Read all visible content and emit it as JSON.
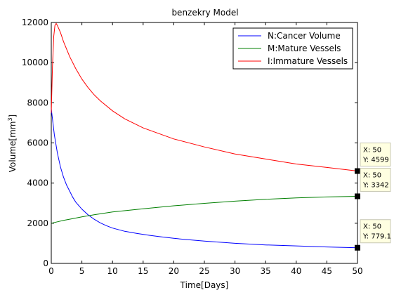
{
  "chart_data": {
    "type": "line",
    "title": "benzekry Model",
    "xlabel": "Time[Days]",
    "ylabel_prefix": "Volume[mm",
    "ylabel_sup": "3",
    "ylabel_suffix": "]",
    "xlim": [
      0,
      50
    ],
    "ylim": [
      0,
      12000
    ],
    "xticks": [
      0,
      5,
      10,
      15,
      20,
      25,
      30,
      35,
      40,
      45,
      50
    ],
    "yticks": [
      0,
      2000,
      4000,
      6000,
      8000,
      10000,
      12000
    ],
    "grid": false,
    "legend_position": "top-right",
    "series": [
      {
        "name": "N:Cancer Volume",
        "color": "#0000ff",
        "x": [
          0,
          0.5,
          1,
          1.5,
          2,
          2.5,
          3,
          3.5,
          4,
          5,
          6,
          7,
          8,
          9,
          10,
          12,
          14,
          16,
          18,
          20,
          22,
          25,
          30,
          35,
          40,
          45,
          50
        ],
        "y": [
          7700,
          6400,
          5500,
          4800,
          4300,
          3900,
          3600,
          3300,
          3050,
          2700,
          2420,
          2200,
          2020,
          1880,
          1760,
          1600,
          1490,
          1400,
          1320,
          1250,
          1190,
          1110,
          1000,
          920,
          870,
          820,
          779.1
        ]
      },
      {
        "name": "M:Mature Vessels",
        "color": "#007f00",
        "x": [
          0,
          1,
          2,
          3,
          5,
          7,
          10,
          15,
          20,
          25,
          30,
          35,
          40,
          45,
          50
        ],
        "y": [
          2000,
          2070,
          2140,
          2200,
          2320,
          2420,
          2560,
          2720,
          2870,
          2990,
          3100,
          3190,
          3260,
          3310,
          3342
        ]
      },
      {
        "name": "I:Immature Vessels",
        "color": "#ff0000",
        "x": [
          0,
          0.2,
          0.4,
          0.6,
          0.8,
          1,
          1.5,
          2,
          3,
          4,
          5,
          6,
          7,
          8,
          10,
          12,
          15,
          20,
          25,
          30,
          35,
          40,
          45,
          50
        ],
        "y": [
          7500,
          9800,
          11300,
          11850,
          11950,
          11850,
          11500,
          11050,
          10300,
          9700,
          9180,
          8760,
          8400,
          8100,
          7600,
          7200,
          6750,
          6200,
          5800,
          5450,
          5200,
          4950,
          4780,
          4599
        ]
      }
    ],
    "datatips": [
      {
        "x": 50,
        "y": 4599,
        "x_text": "X: 50",
        "y_text": "Y: 4599"
      },
      {
        "x": 50,
        "y": 3342,
        "x_text": "X: 50",
        "y_text": "Y: 3342"
      },
      {
        "x": 50,
        "y": 779.1,
        "x_text": "X: 50",
        "y_text": "Y: 779.1"
      }
    ]
  }
}
